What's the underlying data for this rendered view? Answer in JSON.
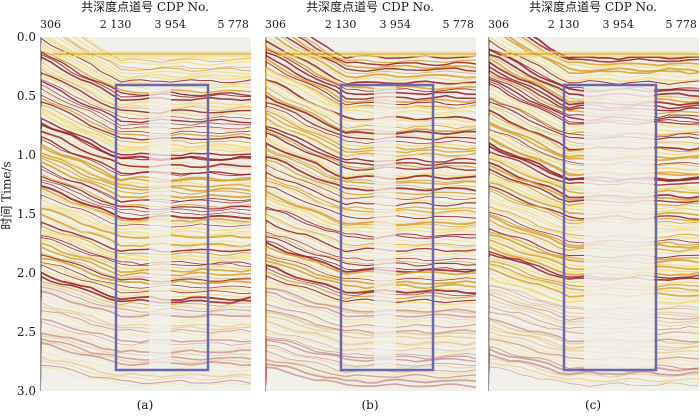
{
  "figure": {
    "x_axis_title": "共深度点道号 CDP No.",
    "x_ticks": [
      "306",
      "2 130",
      "3 954",
      "5 778"
    ],
    "y_axis_title": "时间 Time/s",
    "y_ticks": [
      "0.0",
      "0.5",
      "1.0",
      "1.5",
      "2.0",
      "2.5",
      "3.0"
    ],
    "panels": [
      {
        "label": "(a)",
        "box_color": "#6b68b0",
        "fill_level_in_box": "sparse noise"
      },
      {
        "label": "(b)",
        "box_color": "#6b68b0",
        "fill_level_in_box": "sparse noise"
      },
      {
        "label": "(c)",
        "box_color": "#6b68b0",
        "fill_level_in_box": "clean"
      }
    ],
    "colors": {
      "seismic_positive": "#9a1b1b",
      "seismic_mid": "#d8a028",
      "seismic_light": "#f2dc7c",
      "background": "#f2f0ea",
      "highlight_box": "#6b68b0"
    }
  }
}
